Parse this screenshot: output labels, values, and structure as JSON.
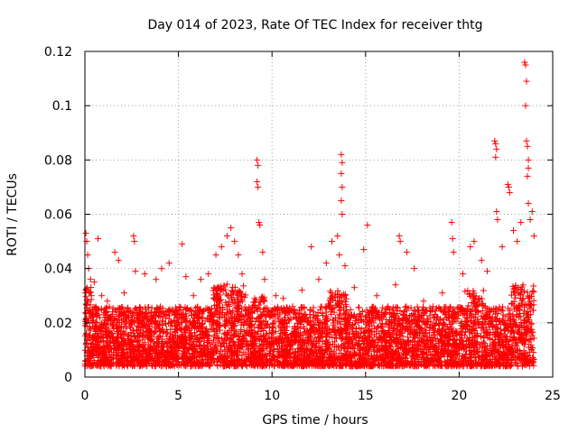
{
  "chart_data": {
    "type": "scatter",
    "title": "Day 014 of 2023, Rate Of TEC Index for receiver thtg",
    "xlabel": "GPS time / hours",
    "ylabel": "ROTI / TECUs",
    "xlim": [
      0,
      25
    ],
    "ylim": [
      0,
      0.12
    ],
    "x_ticks": [
      0,
      5,
      10,
      15,
      20,
      25
    ],
    "x_tick_labels": [
      "0",
      "5",
      "10",
      "15",
      "20",
      "25"
    ],
    "y_ticks": [
      0,
      0.02,
      0.04,
      0.06,
      0.08,
      0.1,
      0.12
    ],
    "y_tick_labels": [
      "0",
      "0.02",
      "0.04",
      "0.06",
      "0.08",
      "0.1",
      "0.12"
    ],
    "grid": true,
    "marker": "+",
    "color": "#ff0000",
    "series": [
      {
        "name": "ROTI",
        "points": [
          [
            0.05,
            0.053
          ],
          [
            0.1,
            0.05
          ],
          [
            0.15,
            0.045
          ],
          [
            0.2,
            0.04
          ],
          [
            0.3,
            0.036
          ],
          [
            0.5,
            0.035
          ],
          [
            0.7,
            0.051
          ],
          [
            0.9,
            0.03
          ],
          [
            1.2,
            0.028
          ],
          [
            1.6,
            0.046
          ],
          [
            1.8,
            0.043
          ],
          [
            2.1,
            0.031
          ],
          [
            2.6,
            0.052
          ],
          [
            2.65,
            0.05
          ],
          [
            2.7,
            0.039
          ],
          [
            3.2,
            0.038
          ],
          [
            3.8,
            0.036
          ],
          [
            4.1,
            0.04
          ],
          [
            4.5,
            0.042
          ],
          [
            5.2,
            0.049
          ],
          [
            5.4,
            0.037
          ],
          [
            5.8,
            0.03
          ],
          [
            6.2,
            0.036
          ],
          [
            6.6,
            0.038
          ],
          [
            7.0,
            0.045
          ],
          [
            7.3,
            0.048
          ],
          [
            7.6,
            0.052
          ],
          [
            7.8,
            0.055
          ],
          [
            8.0,
            0.05
          ],
          [
            8.2,
            0.045
          ],
          [
            8.4,
            0.038
          ],
          [
            9.2,
            0.08
          ],
          [
            9.25,
            0.078
          ],
          [
            9.2,
            0.072
          ],
          [
            9.25,
            0.07
          ],
          [
            9.3,
            0.057
          ],
          [
            9.35,
            0.056
          ],
          [
            9.5,
            0.046
          ],
          [
            9.6,
            0.036
          ],
          [
            10.2,
            0.03
          ],
          [
            10.6,
            0.029
          ],
          [
            11.1,
            0.026
          ],
          [
            11.6,
            0.032
          ],
          [
            12.1,
            0.048
          ],
          [
            12.5,
            0.036
          ],
          [
            12.9,
            0.042
          ],
          [
            13.2,
            0.05
          ],
          [
            13.5,
            0.052
          ],
          [
            13.7,
            0.082
          ],
          [
            13.75,
            0.079
          ],
          [
            13.7,
            0.075
          ],
          [
            13.75,
            0.07
          ],
          [
            13.7,
            0.065
          ],
          [
            13.75,
            0.06
          ],
          [
            13.6,
            0.045
          ],
          [
            13.9,
            0.041
          ],
          [
            14.4,
            0.033
          ],
          [
            14.9,
            0.047
          ],
          [
            15.1,
            0.056
          ],
          [
            15.6,
            0.03
          ],
          [
            16.2,
            0.026
          ],
          [
            16.6,
            0.034
          ],
          [
            16.8,
            0.052
          ],
          [
            16.85,
            0.05
          ],
          [
            17.2,
            0.046
          ],
          [
            17.6,
            0.04
          ],
          [
            18.1,
            0.028
          ],
          [
            18.6,
            0.026
          ],
          [
            19.1,
            0.031
          ],
          [
            19.6,
            0.057
          ],
          [
            19.65,
            0.051
          ],
          [
            19.7,
            0.046
          ],
          [
            20.2,
            0.038
          ],
          [
            20.6,
            0.048
          ],
          [
            20.8,
            0.05
          ],
          [
            21.2,
            0.043
          ],
          [
            21.5,
            0.039
          ],
          [
            21.9,
            0.087
          ],
          [
            21.95,
            0.086
          ],
          [
            22.0,
            0.084
          ],
          [
            21.95,
            0.081
          ],
          [
            22.0,
            0.061
          ],
          [
            22.05,
            0.058
          ],
          [
            22.3,
            0.048
          ],
          [
            22.6,
            0.071
          ],
          [
            22.65,
            0.07
          ],
          [
            22.7,
            0.068
          ],
          [
            22.9,
            0.054
          ],
          [
            23.1,
            0.05
          ],
          [
            23.3,
            0.057
          ],
          [
            23.5,
            0.116
          ],
          [
            23.55,
            0.115
          ],
          [
            23.6,
            0.109
          ],
          [
            23.55,
            0.1
          ],
          [
            23.6,
            0.087
          ],
          [
            23.65,
            0.085
          ],
          [
            23.7,
            0.08
          ],
          [
            23.7,
            0.077
          ],
          [
            23.65,
            0.074
          ],
          [
            23.7,
            0.064
          ],
          [
            23.8,
            0.058
          ],
          [
            23.9,
            0.061
          ],
          [
            24.0,
            0.052
          ]
        ]
      }
    ]
  }
}
